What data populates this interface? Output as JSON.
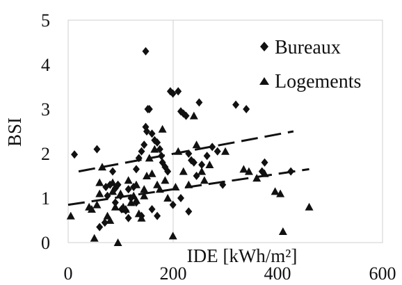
{
  "chart_data": {
    "type": "scatter",
    "title": "",
    "xlabel": "IDE [kWh/m²]",
    "ylabel": "BSI",
    "xlim": [
      0,
      600
    ],
    "ylim": [
      0,
      5
    ],
    "x_ticks": [
      "0",
      "200",
      "400",
      "600"
    ],
    "y_ticks": [
      "0",
      "1",
      "2",
      "3",
      "4",
      "5"
    ],
    "grid": "vertical line at x=200",
    "legend": {
      "placement": "top-right"
    },
    "series": [
      {
        "name": "Bureaux",
        "marker": "diamond",
        "color": "#111111",
        "points": [
          [
            12,
            1.98
          ],
          [
            55,
            2.1
          ],
          [
            72,
            1.25
          ],
          [
            80,
            1.3
          ],
          [
            85,
            1.6
          ],
          [
            90,
            1.22
          ],
          [
            95,
            1.3
          ],
          [
            100,
            1.05
          ],
          [
            102,
            0.75
          ],
          [
            110,
            0.72
          ],
          [
            115,
            0.55
          ],
          [
            120,
            1.0
          ],
          [
            125,
            1.25
          ],
          [
            130,
            1.65
          ],
          [
            135,
            1.9
          ],
          [
            140,
            2.05
          ],
          [
            145,
            2.2
          ],
          [
            148,
            2.6
          ],
          [
            150,
            2.5
          ],
          [
            152,
            3.0
          ],
          [
            148,
            4.3
          ],
          [
            155,
            3.0
          ],
          [
            160,
            2.45
          ],
          [
            165,
            2.3
          ],
          [
            170,
            2.25
          ],
          [
            175,
            2.1
          ],
          [
            178,
            1.95
          ],
          [
            180,
            1.8
          ],
          [
            185,
            1.7
          ],
          [
            190,
            1.6
          ],
          [
            195,
            3.4
          ],
          [
            200,
            3.35
          ],
          [
            210,
            3.4
          ],
          [
            215,
            2.95
          ],
          [
            220,
            2.9
          ],
          [
            225,
            2.85
          ],
          [
            230,
            2.0
          ],
          [
            235,
            1.85
          ],
          [
            240,
            1.8
          ],
          [
            245,
            1.5
          ],
          [
            250,
            3.15
          ],
          [
            255,
            1.75
          ],
          [
            265,
            1.95
          ],
          [
            275,
            2.15
          ],
          [
            285,
            2.05
          ],
          [
            295,
            1.3
          ],
          [
            320,
            3.1
          ],
          [
            340,
            3.0
          ],
          [
            370,
            1.6
          ],
          [
            375,
            1.8
          ],
          [
            425,
            1.6
          ],
          [
            160,
            0.75
          ],
          [
            170,
            0.6
          ],
          [
            140,
            0.6
          ],
          [
            130,
            0.9
          ],
          [
            60,
            0.35
          ],
          [
            70,
            0.45
          ],
          [
            75,
            1.05
          ],
          [
            90,
            0.9
          ],
          [
            115,
            1.2
          ],
          [
            200,
            0.85
          ],
          [
            215,
            1.0
          ],
          [
            230,
            0.7
          ]
        ]
      },
      {
        "name": "Logements",
        "marker": "triangle",
        "color": "#111111",
        "points": [
          [
            5,
            0.6
          ],
          [
            40,
            0.8
          ],
          [
            45,
            0.75
          ],
          [
            50,
            0.1
          ],
          [
            55,
            0.85
          ],
          [
            60,
            1.1
          ],
          [
            65,
            1.7
          ],
          [
            75,
            0.6
          ],
          [
            80,
            0.5
          ],
          [
            85,
            1.35
          ],
          [
            90,
            0.8
          ],
          [
            95,
            0.0
          ],
          [
            100,
            1.1
          ],
          [
            105,
            0.8
          ],
          [
            110,
            0.75
          ],
          [
            115,
            1.4
          ],
          [
            120,
            0.9
          ],
          [
            125,
            1.05
          ],
          [
            130,
            0.95
          ],
          [
            135,
            0.65
          ],
          [
            140,
            0.55
          ],
          [
            145,
            1.2
          ],
          [
            150,
            1.5
          ],
          [
            155,
            1.9
          ],
          [
            160,
            1.55
          ],
          [
            165,
            2.1
          ],
          [
            170,
            1.3
          ],
          [
            175,
            1.2
          ],
          [
            180,
            2.55
          ],
          [
            185,
            1.4
          ],
          [
            190,
            1.0
          ],
          [
            200,
            0.15
          ],
          [
            205,
            1.25
          ],
          [
            210,
            2.05
          ],
          [
            220,
            1.6
          ],
          [
            230,
            1.3
          ],
          [
            240,
            2.85
          ],
          [
            245,
            2.2
          ],
          [
            255,
            1.6
          ],
          [
            260,
            1.4
          ],
          [
            270,
            1.75
          ],
          [
            300,
            2.05
          ],
          [
            335,
            1.65
          ],
          [
            345,
            1.6
          ],
          [
            360,
            1.45
          ],
          [
            375,
            1.55
          ],
          [
            395,
            1.15
          ],
          [
            405,
            1.1
          ],
          [
            410,
            0.25
          ],
          [
            460,
            0.8
          ],
          [
            60,
            1.35
          ],
          [
            85,
            1.15
          ],
          [
            130,
            1.3
          ],
          [
            145,
            1.05
          ]
        ]
      }
    ],
    "trendlines": [
      {
        "series": "Bureaux",
        "style": "dashed",
        "from": [
          20,
          1.6
        ],
        "to": [
          430,
          2.5
        ]
      },
      {
        "series": "Logements",
        "style": "dashed",
        "from": [
          0,
          0.85
        ],
        "to": [
          460,
          1.65
        ]
      }
    ]
  }
}
